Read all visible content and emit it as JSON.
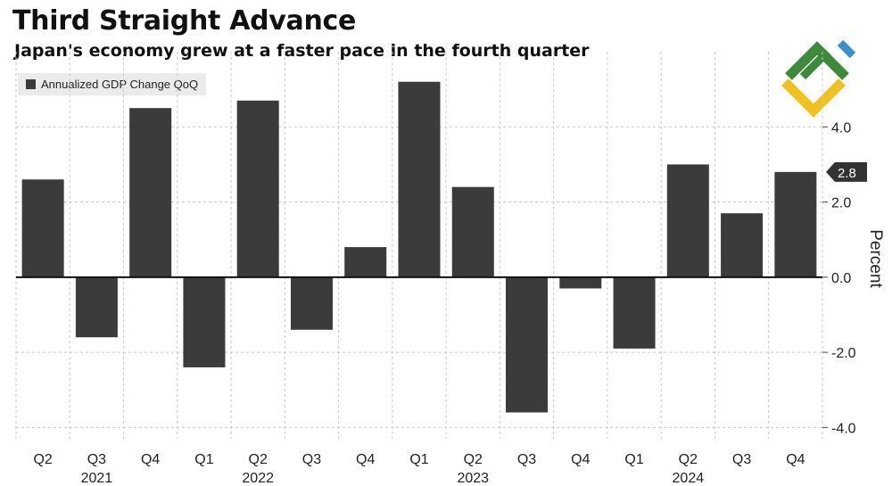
{
  "chart_data": {
    "type": "bar",
    "title": "Third Straight Advance",
    "subtitle": "Japan's economy grew at a faster pace in the fourth quarter",
    "legend": [
      "Annualized GDP Change QoQ"
    ],
    "legend_position": "top-left",
    "categories": [
      "Q2",
      "Q3",
      "Q4",
      "Q1",
      "Q2",
      "Q3",
      "Q4",
      "Q1",
      "Q2",
      "Q3",
      "Q4",
      "Q1",
      "Q2",
      "Q3",
      "Q4"
    ],
    "years": [
      {
        "label": "2021",
        "under_category_index": 1
      },
      {
        "label": "2022",
        "under_category_index": 4
      },
      {
        "label": "2023",
        "under_category_index": 8
      },
      {
        "label": "2024",
        "under_category_index": 12
      }
    ],
    "series": [
      {
        "name": "Annualized GDP Change QoQ",
        "values": [
          2.6,
          -1.6,
          4.5,
          -2.4,
          4.7,
          -1.4,
          0.8,
          5.2,
          2.4,
          -3.6,
          -0.3,
          -1.9,
          3.0,
          1.7,
          2.8
        ]
      }
    ],
    "ylabel": "Percent",
    "yticks": [
      {
        "value": 4.0,
        "label": "4.0"
      },
      {
        "value": 2.0,
        "label": "2.0"
      },
      {
        "value": 0.0,
        "label": "0.0"
      },
      {
        "value": -2.0,
        "label": "-2.0"
      },
      {
        "value": -4.0,
        "label": "-4.0"
      }
    ],
    "ylim": [
      -4.3,
      6.0
    ],
    "last_value_label": "2.8",
    "grid": true
  },
  "colors": {
    "bar": "#3b3b3b",
    "logo_green": "#3c8a3a",
    "logo_blue": "#3a8fd0",
    "logo_yellow": "#f0c020"
  }
}
